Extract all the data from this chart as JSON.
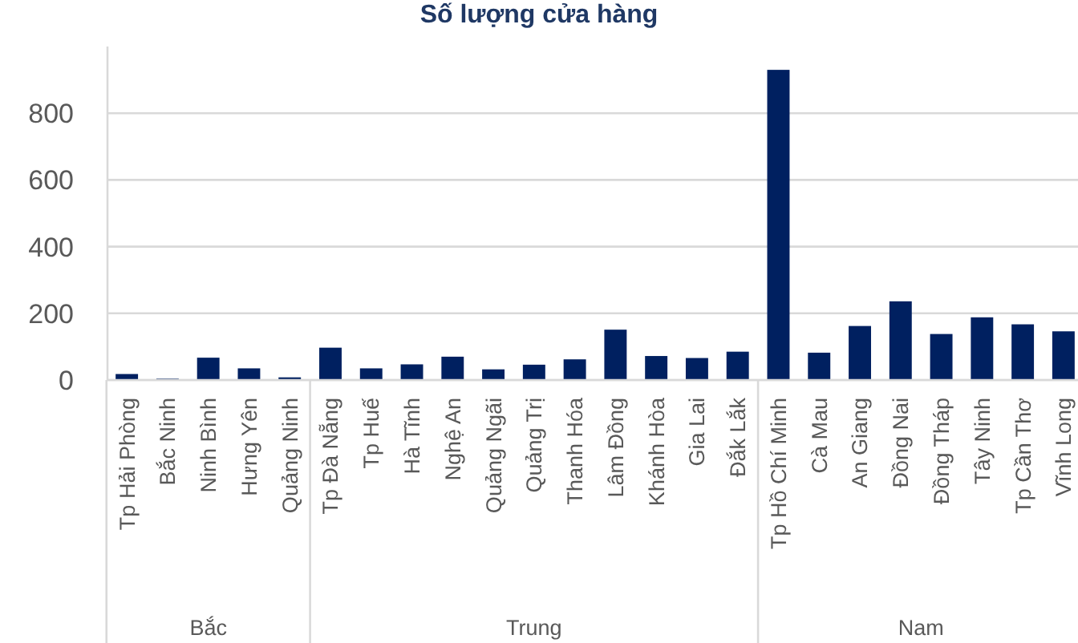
{
  "chart_data": {
    "type": "bar",
    "title": "Số lượng cửa hàng",
    "categories": [
      "Tp Hải Phòng",
      "Bắc Ninh",
      "Ninh Bình",
      "Hưng Yên",
      "Quảng Ninh",
      "Tp Đà Nẵng",
      "Tp Huế",
      "Hà Tĩnh",
      "Nghệ An",
      "Quảng Ngãi",
      "Quảng Trị",
      "Thanh Hóa",
      "Lâm Đồng",
      "Khánh Hòa",
      "Gia Lai",
      "Đắk Lắk",
      "Tp Hồ Chí Minh",
      "Cà Mau",
      "An Giang",
      "Đồng Nai",
      "Đồng Tháp",
      "Tây Ninh",
      "Tp Cần Thơ",
      "Vĩnh Long"
    ],
    "values": [
      18,
      4,
      67,
      35,
      8,
      97,
      35,
      47,
      70,
      32,
      46,
      62,
      151,
      72,
      66,
      85,
      930,
      82,
      162,
      236,
      138,
      188,
      167,
      146
    ],
    "color": "#002060",
    "ylim": [
      0,
      1000
    ],
    "yticks": [
      0,
      200,
      400,
      600,
      800
    ],
    "grid": "y",
    "annotations": [
      "Bắc",
      "Trung",
      "Nam"
    ]
  }
}
